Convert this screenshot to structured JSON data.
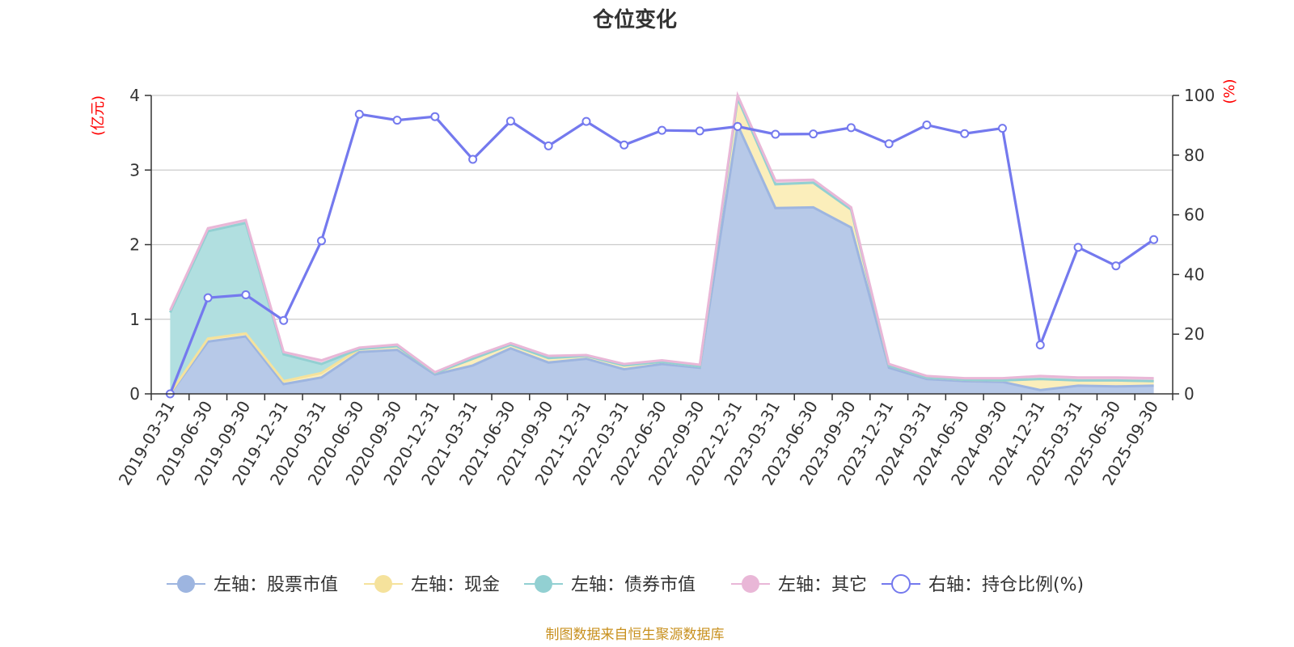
{
  "title": "仓位变化",
  "source": "制图数据来自恒生聚源数据库",
  "chart_data": {
    "type": "area",
    "categories": [
      "2019-03-31",
      "2019-06-30",
      "2019-09-30",
      "2019-12-31",
      "2020-03-31",
      "2020-06-30",
      "2020-09-30",
      "2020-12-31",
      "2021-03-31",
      "2021-06-30",
      "2021-09-30",
      "2021-12-31",
      "2022-03-31",
      "2022-06-30",
      "2022-09-30",
      "2022-12-31",
      "2023-03-31",
      "2023-06-30",
      "2023-09-30",
      "2023-12-31",
      "2024-03-31",
      "2024-06-30",
      "2024-09-30",
      "2024-12-31",
      "2025-03-31",
      "2025-06-30",
      "2025-09-30"
    ],
    "y_left": {
      "label": "(亿元)",
      "ylim": [
        0,
        4
      ],
      "ticks": [
        "0",
        "1",
        "2",
        "3",
        "4"
      ]
    },
    "y_right": {
      "label": "(%)",
      "ylim": [
        0,
        100
      ],
      "ticks": [
        "0",
        "20",
        "40",
        "60",
        "80",
        "100"
      ]
    },
    "grid": true,
    "legend_position": "bottom",
    "series": [
      {
        "name": "左轴：股票市值",
        "axis": "left",
        "kind": "stacked-area",
        "fill": "#b7c9e8",
        "stroke": "#9db5e0",
        "values": [
          0.0,
          0.7,
          0.77,
          0.13,
          0.22,
          0.56,
          0.59,
          0.26,
          0.38,
          0.61,
          0.42,
          0.47,
          0.33,
          0.4,
          0.35,
          3.6,
          2.49,
          2.5,
          2.23,
          0.35,
          0.2,
          0.17,
          0.16,
          0.05,
          0.11,
          0.1,
          0.11
        ]
      },
      {
        "name": "左轴：现金",
        "axis": "left",
        "kind": "stacked-area",
        "fill": "#fbeebb",
        "stroke": "#f5e29c",
        "values": [
          0.01,
          0.04,
          0.04,
          0.04,
          0.06,
          0.04,
          0.05,
          0.02,
          0.09,
          0.05,
          0.06,
          0.04,
          0.05,
          0.03,
          0.02,
          0.36,
          0.32,
          0.33,
          0.24,
          0.03,
          0.02,
          0.02,
          0.02,
          0.15,
          0.07,
          0.08,
          0.06
        ]
      },
      {
        "name": "左轴：债券市值",
        "axis": "left",
        "kind": "stacked-area",
        "fill": "#b1dfe0",
        "stroke": "#92d0d2",
        "values": [
          1.08,
          1.44,
          1.48,
          0.36,
          0.12,
          0,
          0,
          0,
          0,
          0,
          0,
          0,
          0,
          0,
          0,
          0,
          0,
          0,
          0,
          0,
          0,
          0,
          0,
          0,
          0,
          0,
          0
        ]
      },
      {
        "name": "左轴：其它",
        "axis": "left",
        "kind": "stacked-area",
        "fill": "#f0cce3",
        "stroke": "#e9b7d7",
        "values": [
          0.03,
          0.04,
          0.04,
          0.03,
          0.05,
          0.02,
          0.02,
          0.01,
          0.03,
          0.02,
          0.03,
          0.01,
          0.02,
          0.02,
          0.02,
          0.04,
          0.05,
          0.04,
          0.03,
          0.02,
          0.02,
          0.02,
          0.03,
          0.04,
          0.04,
          0.04,
          0.04
        ]
      },
      {
        "name": "右轴：持仓比例(%)",
        "axis": "right",
        "kind": "line",
        "stroke": "#7479ee",
        "values": [
          0.0,
          32.2,
          33.2,
          24.6,
          51.3,
          93.7,
          91.7,
          92.9,
          78.6,
          91.4,
          83.1,
          91.3,
          83.4,
          88.3,
          88.1,
          89.6,
          87.0,
          87.1,
          89.2,
          83.8,
          90.1,
          87.2,
          89.0,
          16.4,
          49.1,
          42.9,
          51.7
        ]
      }
    ]
  },
  "colors": {
    "axis": "#333333",
    "grid": "#cccccc",
    "unit_label": "#ff0000",
    "source": "#c8901e"
  }
}
